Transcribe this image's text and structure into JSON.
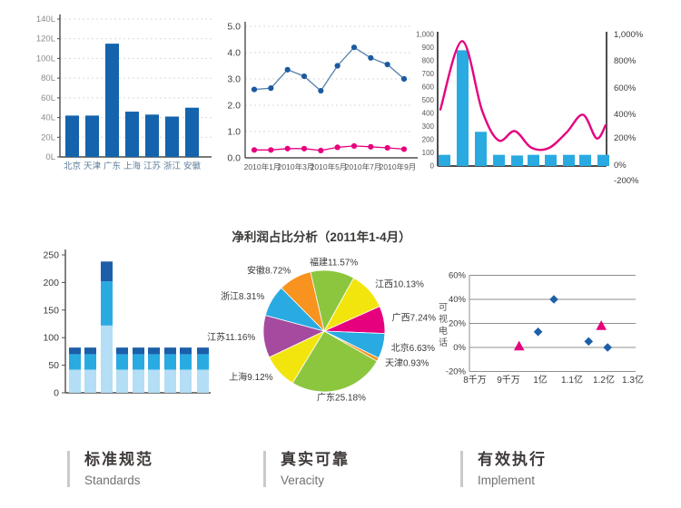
{
  "canvas": {
    "background": "#ffffff"
  },
  "footer": {
    "items": [
      {
        "title": "标准规范",
        "subtitle": "Standards"
      },
      {
        "title": "真实可靠",
        "subtitle": "Veracity"
      },
      {
        "title": "有效执行",
        "subtitle": "Implement"
      }
    ]
  },
  "chart_data": [
    {
      "type": "bar",
      "categories": [
        "北京",
        "天津",
        "广东",
        "上海",
        "江苏",
        "浙江",
        "安徽"
      ],
      "values": [
        42,
        42,
        115,
        46,
        43,
        41,
        50
      ],
      "y_tick_labels": [
        "0L",
        "20L",
        "40L",
        "60L",
        "80L",
        "100L",
        "120L",
        "140L"
      ],
      "ylim": [
        0,
        140
      ],
      "bar_color": "#1463ac",
      "grid": "dashed-horizontal"
    },
    {
      "type": "line",
      "x_tick_labels": [
        "2010年1月",
        "2010年3月",
        "2010年5月",
        "2010年7月",
        "2010年9月"
      ],
      "y_tick_labels": [
        "0.0",
        "1.0",
        "2.0",
        "3.0",
        "4.0",
        "5.0"
      ],
      "ylim": [
        0,
        5
      ],
      "grid": "dashed-horizontal",
      "series": [
        {
          "name": "series-blue",
          "line_color": "#5580ad",
          "marker_color": "#1b5aa0",
          "values": [
            2.6,
            2.65,
            3.35,
            3.1,
            2.55,
            3.5,
            4.2,
            3.8,
            3.55,
            3.0
          ]
        },
        {
          "name": "series-pink",
          "line_color": "#e6007e",
          "marker_color": "#e6007e",
          "values": [
            0.3,
            0.3,
            0.35,
            0.35,
            0.28,
            0.4,
            0.45,
            0.42,
            0.38,
            0.33
          ]
        }
      ]
    },
    {
      "type": "bar+line",
      "bar_values": [
        85,
        880,
        260,
        85,
        80,
        85,
        85,
        85,
        85,
        85
      ],
      "line_values": [
        430,
        950,
        420,
        195,
        265,
        140,
        135,
        255,
        390,
        210,
        310
      ],
      "left_tick_labels": [
        "0",
        "100",
        "200",
        "300",
        "400",
        "500",
        "600",
        "700",
        "800",
        "900",
        "1,000"
      ],
      "right_tick_labels": [
        "-200%",
        "0%",
        "200%",
        "400%",
        "600%",
        "800%",
        "1,000%"
      ],
      "left_ylim": [
        0,
        1000
      ],
      "bar_color": "#29abe2",
      "line_color": "#e6007e"
    },
    {
      "type": "stacked-bar",
      "y_tick_labels": [
        "0",
        "50",
        "100",
        "150",
        "200",
        "250"
      ],
      "ylim": [
        0,
        250
      ],
      "segment_colors": [
        "#b3def5",
        "#29abe2",
        "#1b5fa9"
      ],
      "bars": [
        [
          42,
          28,
          12
        ],
        [
          42,
          28,
          12
        ],
        [
          122,
          80,
          36
        ],
        [
          42,
          28,
          12
        ],
        [
          42,
          28,
          12
        ],
        [
          42,
          28,
          12
        ],
        [
          42,
          28,
          12
        ],
        [
          42,
          28,
          12
        ],
        [
          42,
          28,
          12
        ]
      ]
    },
    {
      "type": "pie",
      "title": "净利润占比分析（2011年1-4月）",
      "start_angle_deg": -13,
      "label_format": "{label}{value}%",
      "slices": [
        {
          "label": "福建",
          "value": 11.57,
          "color": "#8cc63f"
        },
        {
          "label": "江西",
          "value": 10.13,
          "color": "#f2e50e"
        },
        {
          "label": "广西",
          "value": 7.24,
          "color": "#e6007e"
        },
        {
          "label": "北京",
          "value": 6.63,
          "color": "#29abe2"
        },
        {
          "label": "天津",
          "value": 0.93,
          "color": "#f7931e"
        },
        {
          "label": "广东",
          "value": 25.18,
          "color": "#8cc63f"
        },
        {
          "label": "上海",
          "value": 9.12,
          "color": "#f2e50e"
        },
        {
          "label": "江苏",
          "value": 11.16,
          "color": "#a54a9e"
        },
        {
          "label": "浙江",
          "value": 8.31,
          "color": "#29abe2"
        },
        {
          "label": "安徽",
          "value": 8.72,
          "color": "#f7931e"
        }
      ]
    },
    {
      "type": "scatter",
      "ylabel": "可视电话",
      "y_tick_labels": [
        "-20%",
        "0%",
        "20%",
        "40%",
        "60%"
      ],
      "x_tick_labels": [
        "8千万",
        "9千万",
        "1亿",
        "1.1亿",
        "1.2亿",
        "1.3亿"
      ],
      "xlim_yi": [
        0.8,
        1.3
      ],
      "ylim_pct": [
        -20,
        60
      ],
      "points": [
        {
          "x_yi": 0.94,
          "y_pct": 1,
          "marker": "triangle",
          "color": "#e6007e"
        },
        {
          "x_yi": 1.0,
          "y_pct": 13,
          "marker": "diamond",
          "color": "#1d5fa9"
        },
        {
          "x_yi": 1.05,
          "y_pct": 40,
          "marker": "diamond",
          "color": "#1d5fa9"
        },
        {
          "x_yi": 1.16,
          "y_pct": 5,
          "marker": "diamond",
          "color": "#1d5fa9"
        },
        {
          "x_yi": 1.2,
          "y_pct": 18,
          "marker": "triangle",
          "color": "#e6007e"
        },
        {
          "x_yi": 1.22,
          "y_pct": 0,
          "marker": "diamond",
          "color": "#1d5fa9"
        }
      ]
    }
  ]
}
